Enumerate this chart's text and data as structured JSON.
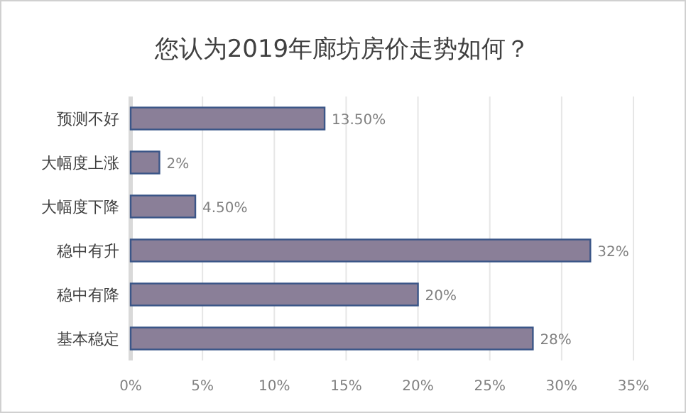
{
  "chart_data": {
    "type": "bar",
    "orientation": "horizontal",
    "title": "您认为2019年廊坊房价走势如何？",
    "categories": [
      "预测不好",
      "大幅度上涨",
      "大幅度下降",
      "稳中有升",
      "稳中有降",
      "基本稳定"
    ],
    "values": [
      13.5,
      2,
      4.5,
      32,
      20,
      28
    ],
    "value_labels": [
      "13.50%",
      "2%",
      "4.50%",
      "32%",
      "20%",
      "28%"
    ],
    "color": "#8a7f98",
    "xlim": [
      0,
      35
    ],
    "xticks": [
      {
        "value": 0,
        "label": "0%"
      },
      {
        "value": 5,
        "label": "5%"
      },
      {
        "value": 10,
        "label": "10%"
      },
      {
        "value": 15,
        "label": "15%"
      },
      {
        "value": 20,
        "label": "20%"
      },
      {
        "value": 25,
        "label": "25%"
      },
      {
        "value": 30,
        "label": "30%"
      },
      {
        "value": 35,
        "label": "35%"
      }
    ],
    "grid": "x"
  }
}
